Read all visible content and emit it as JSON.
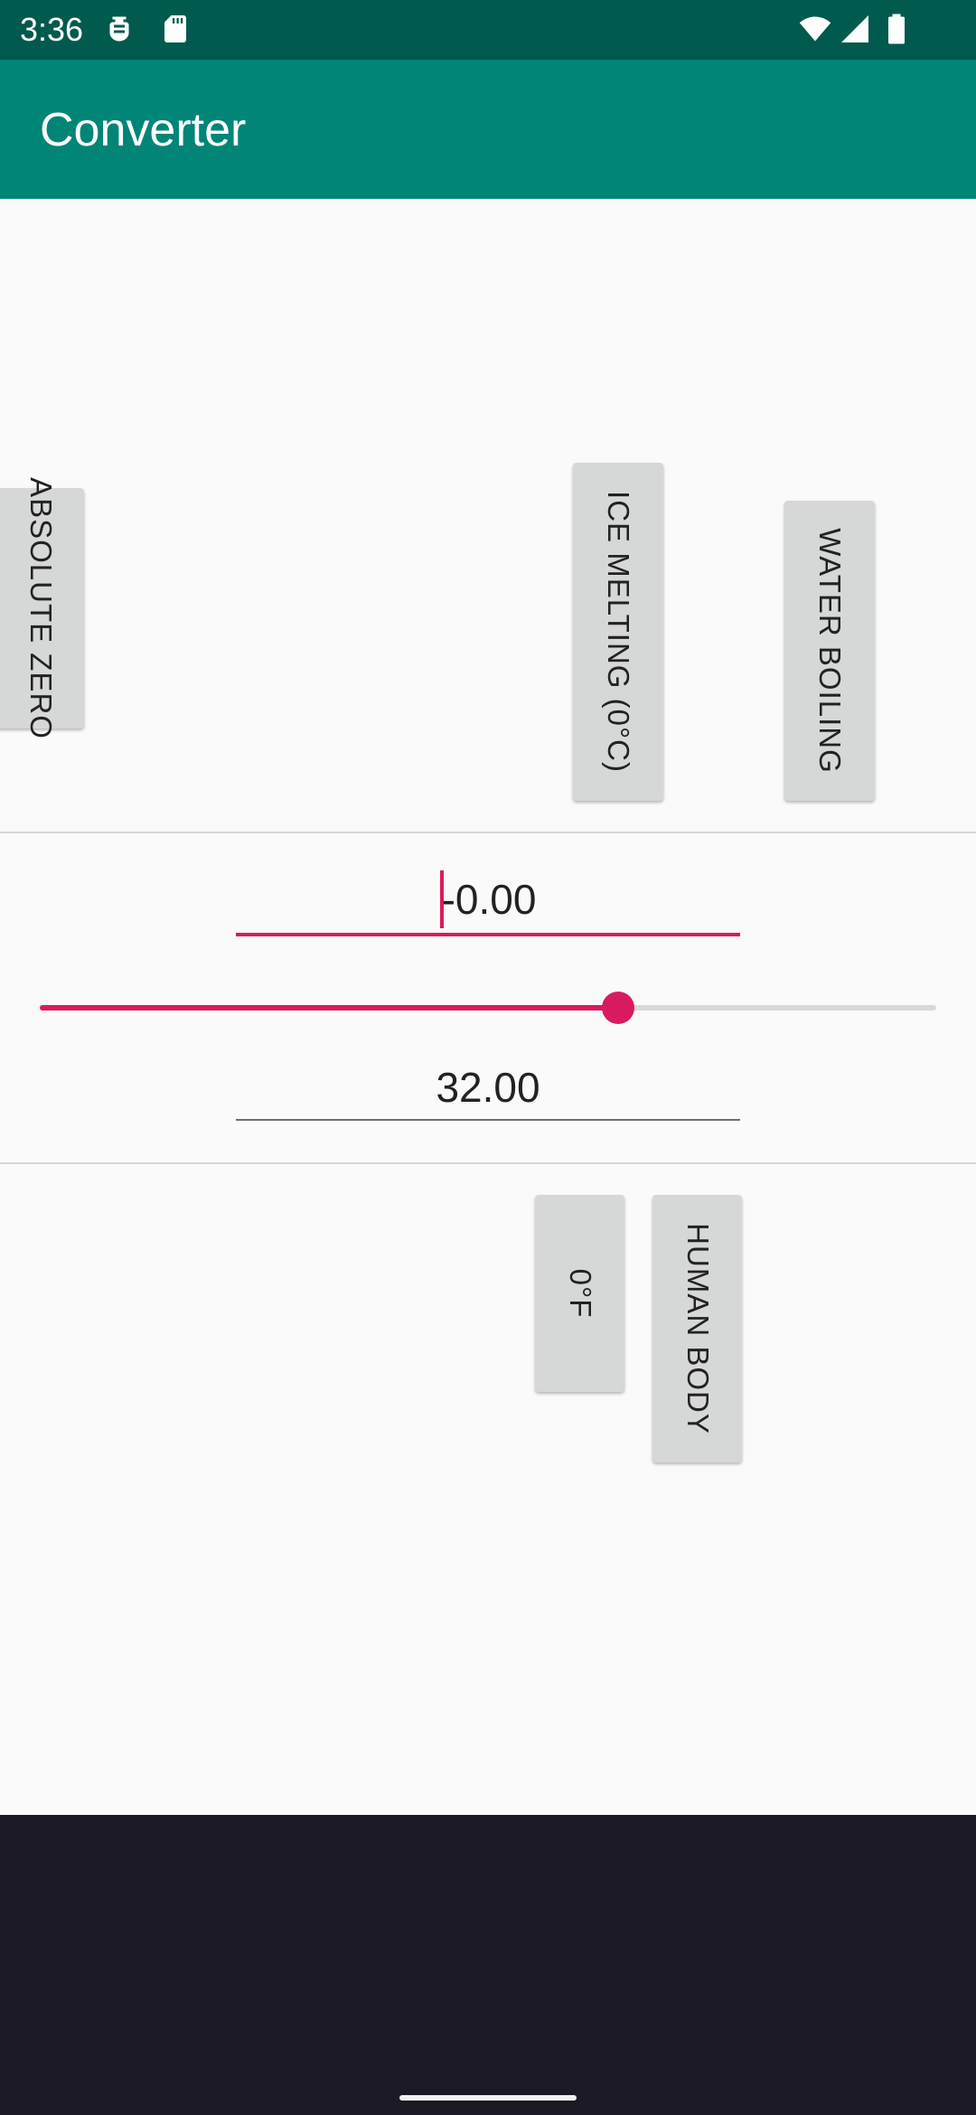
{
  "status_bar": {
    "time": "3:36",
    "left_icons": [
      "debug-icon",
      "sd-card-icon"
    ],
    "right_icons": [
      "wifi-icon",
      "cellular-signal-icon",
      "battery-icon"
    ],
    "background": "#005a4d"
  },
  "app_bar": {
    "title": "Converter",
    "background": "#008577"
  },
  "celsius_presets": [
    {
      "label": "ABSOLUTE ZERO"
    },
    {
      "label": "ICE MELTING (0°C)"
    },
    {
      "label": "WATER BOILING"
    }
  ],
  "celsius_field": {
    "value": "-0.00"
  },
  "slider": {
    "fraction": 0.645,
    "accent": "#d81b60"
  },
  "fahrenheit_field": {
    "value": "32.00"
  },
  "fahrenheit_presets": [
    {
      "label": "0°F"
    },
    {
      "label": "HUMAN BODY"
    }
  ]
}
